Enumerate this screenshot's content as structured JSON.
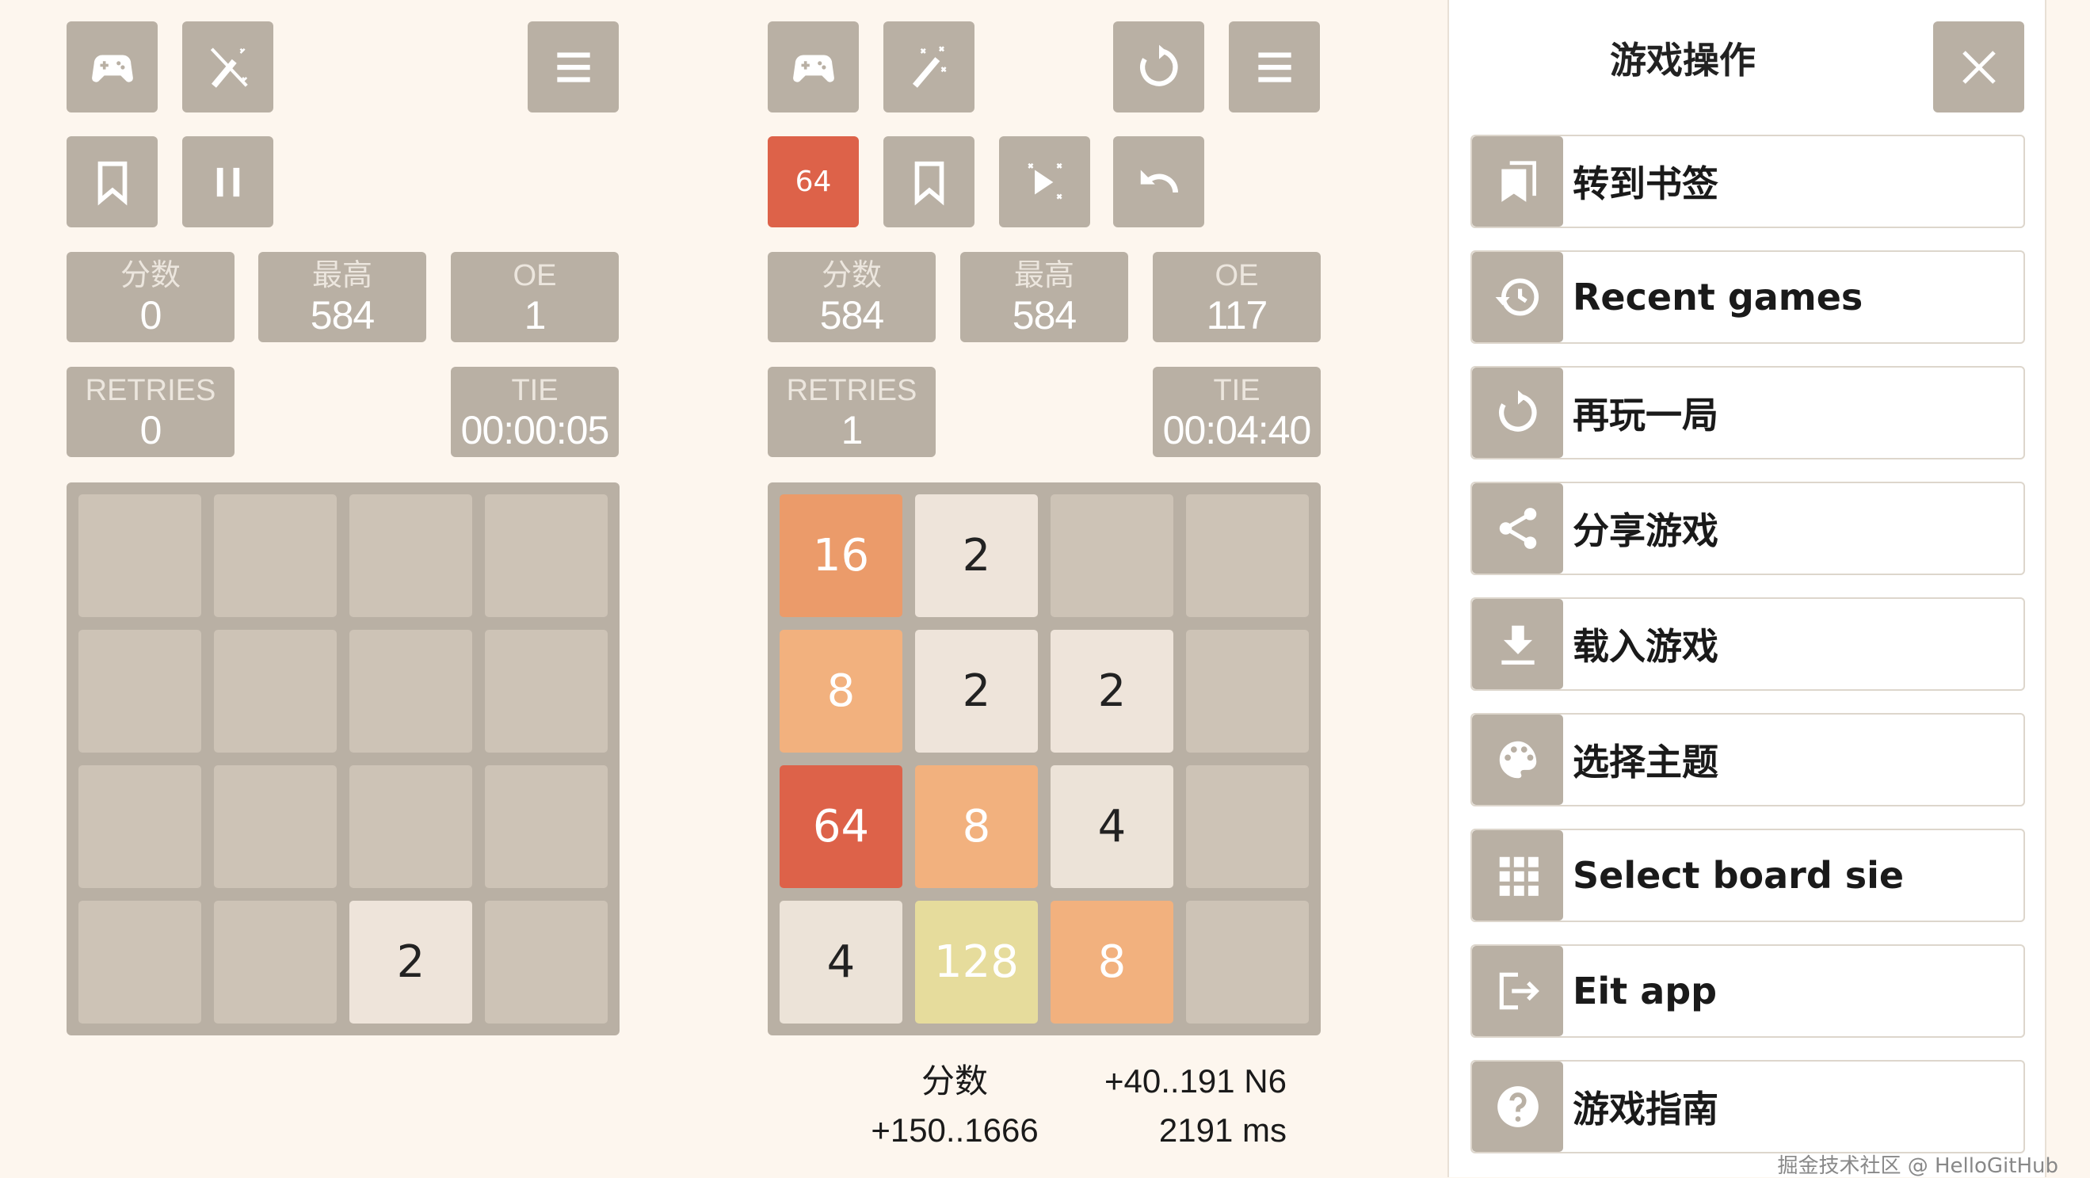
{
  "colors": {
    "background": "#fdf6ee",
    "button": "#b9b0a4",
    "accent": "#dd6249",
    "tile_2": "#eee4da",
    "tile_4": "#ece3d8",
    "tile_8": "#f2b17e",
    "tile_16": "#eb9b6a",
    "tile_64": "#dd6249",
    "tile_128": "#e6dc9c",
    "empty": "#cdc3b6"
  },
  "left_game": {
    "buttons": [
      "gamepad-icon",
      "magic-wand-off-icon",
      "menu-icon",
      "bookmark-icon",
      "pause-icon"
    ],
    "stats": [
      {
        "label": "分数",
        "value": "0"
      },
      {
        "label": "最高",
        "value": "584"
      },
      {
        "label": "OE",
        "value": "1"
      }
    ],
    "retries": {
      "label": "RETRIES",
      "value": "0"
    },
    "time": {
      "label": "TIE",
      "value": "00:00:05"
    },
    "board": [
      [
        "",
        "",
        "",
        ""
      ],
      [
        "",
        "",
        "",
        ""
      ],
      [
        "",
        "",
        "",
        ""
      ],
      [
        "",
        "",
        "2",
        ""
      ]
    ]
  },
  "right_game": {
    "buttons": [
      "gamepad-icon",
      "magic-wand-icon",
      "restart-icon",
      "menu-icon",
      "bookmark-icon",
      "autoplay-icon",
      "undo-icon"
    ],
    "target_badge": "64",
    "stats": [
      {
        "label": "分数",
        "value": "584"
      },
      {
        "label": "最高",
        "value": "584"
      },
      {
        "label": "OE",
        "value": "117"
      }
    ],
    "retries": {
      "label": "RETRIES",
      "value": "1"
    },
    "time": {
      "label": "TIE",
      "value": "00:04:40"
    },
    "board": [
      [
        "16",
        "2",
        "",
        ""
      ],
      [
        "8",
        "2",
        "2",
        ""
      ],
      [
        "64",
        "8",
        "4",
        ""
      ],
      [
        "4",
        "128",
        "8",
        ""
      ]
    ],
    "footer": {
      "score_label": "分数",
      "score_range": "+150..1666",
      "ai_info": "+40..191 N6",
      "ai_time": "2191 ms"
    }
  },
  "panel": {
    "title": "游戏操作",
    "items": [
      {
        "label": "转到书签",
        "icon": "bookmarks-icon"
      },
      {
        "label": "Recent games",
        "icon": "history-icon"
      },
      {
        "label": "再玩一局",
        "icon": "restart-icon"
      },
      {
        "label": "分享游戏",
        "icon": "share-icon"
      },
      {
        "label": "载入游戏",
        "icon": "download-icon"
      },
      {
        "label": "选择主题",
        "icon": "palette-icon"
      },
      {
        "label": "Select board sie",
        "icon": "grid-icon"
      },
      {
        "label": "Eit app",
        "icon": "exit-icon"
      },
      {
        "label": "游戏指南",
        "icon": "help-icon"
      }
    ]
  },
  "watermark": "掘金技术社区 @ HelloGitHub"
}
